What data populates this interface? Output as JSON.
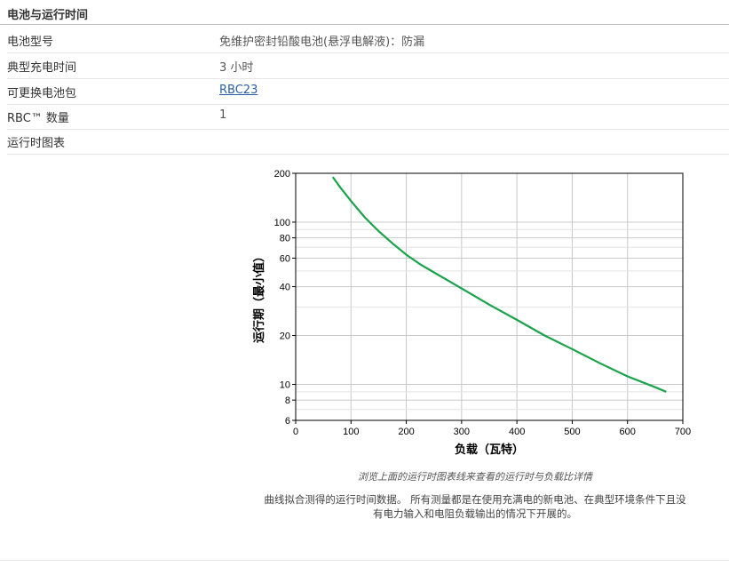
{
  "section": {
    "title": "电池与运行时间"
  },
  "specs": [
    {
      "label": "电池型号",
      "value": "免维护密封铅酸电池(悬浮电解液)：防漏"
    },
    {
      "label": "典型充电时间",
      "value": "3 小时"
    },
    {
      "label": "可更换电池包",
      "value": "RBC23"
    },
    {
      "label": "RBC™ 数量",
      "value": "1"
    },
    {
      "label": "运行时图表",
      "value": ""
    }
  ],
  "chart_note": "浏览上面的运行时图表线来查看的运行时与负载比详情",
  "chart_desc_line1": "曲线拟合测得的运行时间数据。 所有测量都是在使用充满电的新电池、在典型环境条件下且没",
  "chart_desc_line2": "有电力输入和电阻负载输出的情况下开展的。",
  "chart_data": {
    "type": "line",
    "xlabel": "负载（瓦特）",
    "ylabel": "运行期（最小值）",
    "xlim": [
      0,
      700
    ],
    "ylim": [
      6,
      200
    ],
    "yscale": "log",
    "grid": true,
    "xticks": [
      0,
      100,
      200,
      300,
      400,
      500,
      600,
      700
    ],
    "yticks": [
      6,
      8,
      10,
      20,
      40,
      60,
      80,
      100,
      200
    ],
    "line_color": "#1aa34a",
    "series": [
      {
        "x": [
          67,
          80,
          100,
          125,
          150,
          175,
          200,
          225,
          250,
          300,
          350,
          400,
          450,
          500,
          550,
          600,
          650,
          670
        ],
        "y": [
          190,
          165,
          135,
          107,
          88,
          74,
          63,
          55,
          49,
          39,
          31,
          25,
          20,
          16.5,
          13.5,
          11.2,
          9.6,
          9
        ]
      }
    ]
  }
}
